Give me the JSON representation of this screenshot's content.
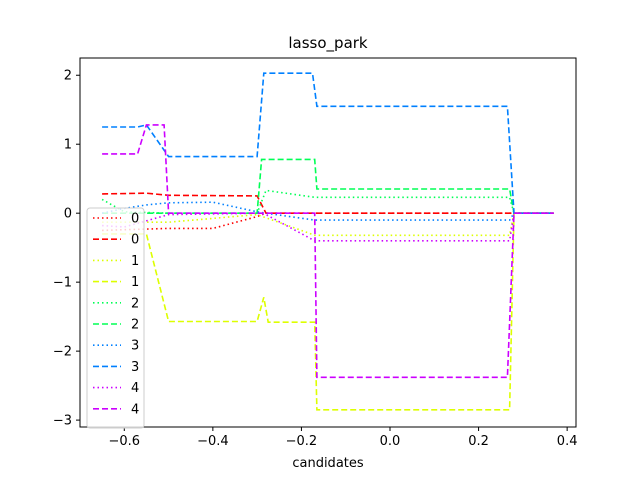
{
  "chart_data": {
    "type": "line",
    "title": "lasso_park",
    "xlabel": "candidates",
    "ylabel": "",
    "xlim": [
      -0.7,
      0.42
    ],
    "ylim": [
      -3.1,
      2.25
    ],
    "xticks": [
      -0.6,
      -0.4,
      -0.2,
      0.0,
      0.2,
      0.4
    ],
    "xtick_labels": [
      "−0.6",
      "−0.4",
      "−0.2",
      "0.0",
      "0.2",
      "0.4"
    ],
    "yticks": [
      2,
      1,
      0,
      -1,
      -2,
      -3
    ],
    "ytick_labels": [
      "2",
      "1",
      "0",
      "−1",
      "−2",
      "−3"
    ],
    "grid": false,
    "legend_position": "center-left",
    "series": [
      {
        "name": "0",
        "color": "#ff0000",
        "dash": "dotted",
        "x": [
          -0.65,
          -0.5,
          -0.4,
          -0.3,
          -0.28,
          0.0,
          0.2,
          0.27,
          0.28,
          0.37
        ],
        "y": [
          -0.25,
          -0.22,
          -0.22,
          -0.05,
          0.0,
          0.0,
          0.0,
          0.0,
          0.0,
          0.0
        ]
      },
      {
        "name": "0",
        "color": "#ff0000",
        "dash": "dashed",
        "x": [
          -0.65,
          -0.55,
          -0.5,
          -0.3,
          -0.28,
          -0.17,
          0.27,
          0.28,
          0.37
        ],
        "y": [
          0.28,
          0.29,
          0.26,
          0.25,
          0.0,
          0.0,
          0.0,
          0.0,
          0.0
        ]
      },
      {
        "name": "1",
        "color": "#ddff00",
        "dash": "dotted",
        "x": [
          -0.65,
          -0.5,
          -0.3,
          -0.2,
          -0.17,
          0.27,
          0.28,
          0.37
        ],
        "y": [
          -0.13,
          -0.13,
          -0.02,
          -0.25,
          -0.32,
          -0.32,
          0.0,
          0.0
        ]
      },
      {
        "name": "1",
        "color": "#ddff00",
        "dash": "dashed",
        "x": [
          -0.65,
          -0.56,
          -0.55,
          -0.5,
          -0.3,
          -0.285,
          -0.275,
          -0.17,
          -0.165,
          0.27,
          0.28,
          0.37
        ],
        "y": [
          -0.3,
          -0.3,
          -0.3,
          -1.57,
          -1.57,
          -1.22,
          -1.58,
          -1.58,
          -2.85,
          -2.85,
          0.0,
          0.0
        ]
      },
      {
        "name": "2",
        "color": "#00ff55",
        "dash": "dotted",
        "x": [
          -0.65,
          -0.6,
          -0.5,
          -0.4,
          -0.3,
          -0.28,
          -0.17,
          0.27,
          0.28,
          0.37
        ],
        "y": [
          0.2,
          0.02,
          0.0,
          0.0,
          0.0,
          0.33,
          0.23,
          0.23,
          0.0,
          0.0
        ]
      },
      {
        "name": "2",
        "color": "#00ff55",
        "dash": "dashed",
        "x": [
          -0.65,
          -0.6,
          -0.5,
          -0.3,
          -0.29,
          -0.17,
          -0.165,
          0.27,
          0.28,
          0.37
        ],
        "y": [
          0.0,
          0.0,
          0.0,
          0.0,
          0.78,
          0.78,
          0.35,
          0.35,
          0.0,
          0.0
        ]
      },
      {
        "name": "3",
        "color": "#0080ff",
        "dash": "dotted",
        "x": [
          -0.65,
          -0.6,
          -0.55,
          -0.5,
          -0.4,
          -0.3,
          -0.28,
          -0.17,
          0.27,
          0.28,
          0.37
        ],
        "y": [
          0.0,
          0.07,
          0.12,
          0.15,
          0.16,
          0.02,
          0.0,
          -0.1,
          -0.1,
          0.0,
          0.0
        ]
      },
      {
        "name": "3",
        "color": "#0080ff",
        "dash": "dashed",
        "x": [
          -0.65,
          -0.57,
          -0.55,
          -0.5,
          -0.3,
          -0.285,
          -0.175,
          -0.165,
          0.265,
          0.28,
          0.37
        ],
        "y": [
          1.25,
          1.25,
          1.28,
          0.82,
          0.82,
          2.03,
          2.03,
          1.55,
          1.55,
          0.0,
          0.0
        ]
      },
      {
        "name": "4",
        "color": "#cc00ff",
        "dash": "dotted",
        "x": [
          -0.65,
          -0.6,
          -0.5,
          -0.3,
          -0.28,
          -0.17,
          0.27,
          0.28,
          0.37
        ],
        "y": [
          -0.18,
          -0.2,
          -0.02,
          0.0,
          -0.02,
          -0.4,
          -0.4,
          0.0,
          0.0
        ]
      },
      {
        "name": "4",
        "color": "#cc00ff",
        "dash": "dashed",
        "x": [
          -0.65,
          -0.57,
          -0.55,
          -0.51,
          -0.5,
          -0.3,
          -0.17,
          -0.165,
          0.265,
          0.28,
          0.37
        ],
        "y": [
          0.86,
          0.86,
          1.28,
          1.28,
          0.0,
          0.0,
          0.0,
          -2.38,
          -2.38,
          0.0,
          0.0
        ]
      }
    ]
  }
}
